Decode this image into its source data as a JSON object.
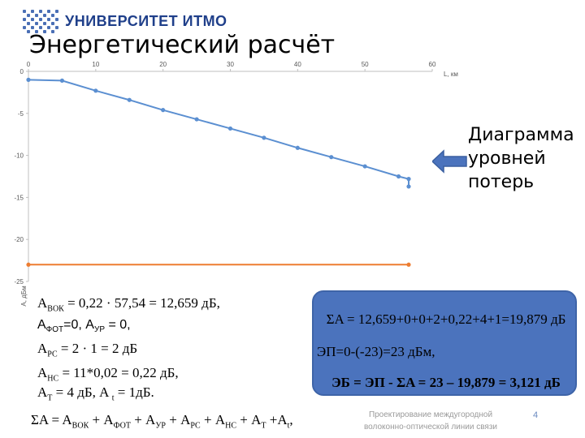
{
  "header": {
    "logo_text": "УНИВЕРСИТЕТ ИТМО",
    "title": "Энергетический расчёт"
  },
  "callout": {
    "lines": [
      "Диаграмма",
      "уровней",
      "потерь"
    ]
  },
  "colors": {
    "loss_line": "#5b8fd1",
    "threshold_line": "#ed7d31",
    "box_fill": "#4b73bd",
    "arrow_fill": "#4b73bd"
  },
  "chart_data": {
    "type": "line",
    "xlabel": "L, км",
    "ylabel": "A, дБм",
    "xlim": [
      0,
      60
    ],
    "ylim": [
      -25,
      0
    ],
    "x_ticks": [
      "0",
      "10",
      "20",
      "30",
      "40",
      "50",
      "60"
    ],
    "y_ticks": [
      "0",
      "-5",
      "-10",
      "-15",
      "-20",
      "-25"
    ],
    "x_axis_position": "top",
    "grid": false,
    "series": [
      {
        "x": [
          0,
          5,
          10,
          15,
          20,
          25,
          30,
          35,
          40,
          45,
          50,
          55,
          56.5,
          56.5
        ],
        "y": [
          -1,
          -1.1,
          -2.3,
          -3.4,
          -4.6,
          -5.7,
          -6.8,
          -7.9,
          -9.1,
          -10.2,
          -11.3,
          -12.5,
          -12.8,
          -13.7
        ],
        "color": "#5b8fd1"
      },
      {
        "x": [
          0,
          56.5
        ],
        "y": [
          -23,
          -23
        ],
        "color": "#ed7d31"
      }
    ]
  },
  "formulas_left": {
    "line1": {
      "pre": "A",
      "sub": "ВОК",
      "post": " = 0,22 · 57,54 = 12,659 дБ,"
    },
    "line2": {
      "a": "A",
      "asub": "ФОТ",
      "b": "=0,  A",
      "bsub": "УР",
      "c": " = 0,"
    },
    "line3": {
      "pre": "A",
      "sub": "РС",
      "post": " = 2 · 1 = 2 дБ"
    },
    "line4": {
      "pre": "A",
      "sub": "НС",
      "post": " = 11*0,02 = 0,22 дБ,"
    },
    "line5": {
      "a": "A",
      "asub": "T",
      "b": " = 4 дБ, A ",
      "bsub": "t",
      "c": " = 1дБ."
    },
    "line6": {
      "p1": "ΣA = A",
      "s1": "ВОК",
      "p2": " + A",
      "s2": "ФОТ",
      "p3": " + A",
      "s3": "УР",
      "p4": " + A",
      "s4": "РС",
      "p5": " + A",
      "s5": "НС",
      "p6": " + A",
      "s6": "T",
      "p7": " +A",
      "s7": "t",
      "p8": ","
    }
  },
  "box": {
    "line1": "ΣA = 12,659+0+0+2+0,22+4+1=19,879 дБ",
    "line2": "ЭП=0-(-23)=23 дБм,",
    "line3": "ЭБ = ЭП - ΣA = 23 – 19,879 = 3,121 дБ"
  },
  "footer": {
    "line1": "Проектирование междугородной",
    "line2": "волоконно-оптической линии связи",
    "page": "4"
  }
}
